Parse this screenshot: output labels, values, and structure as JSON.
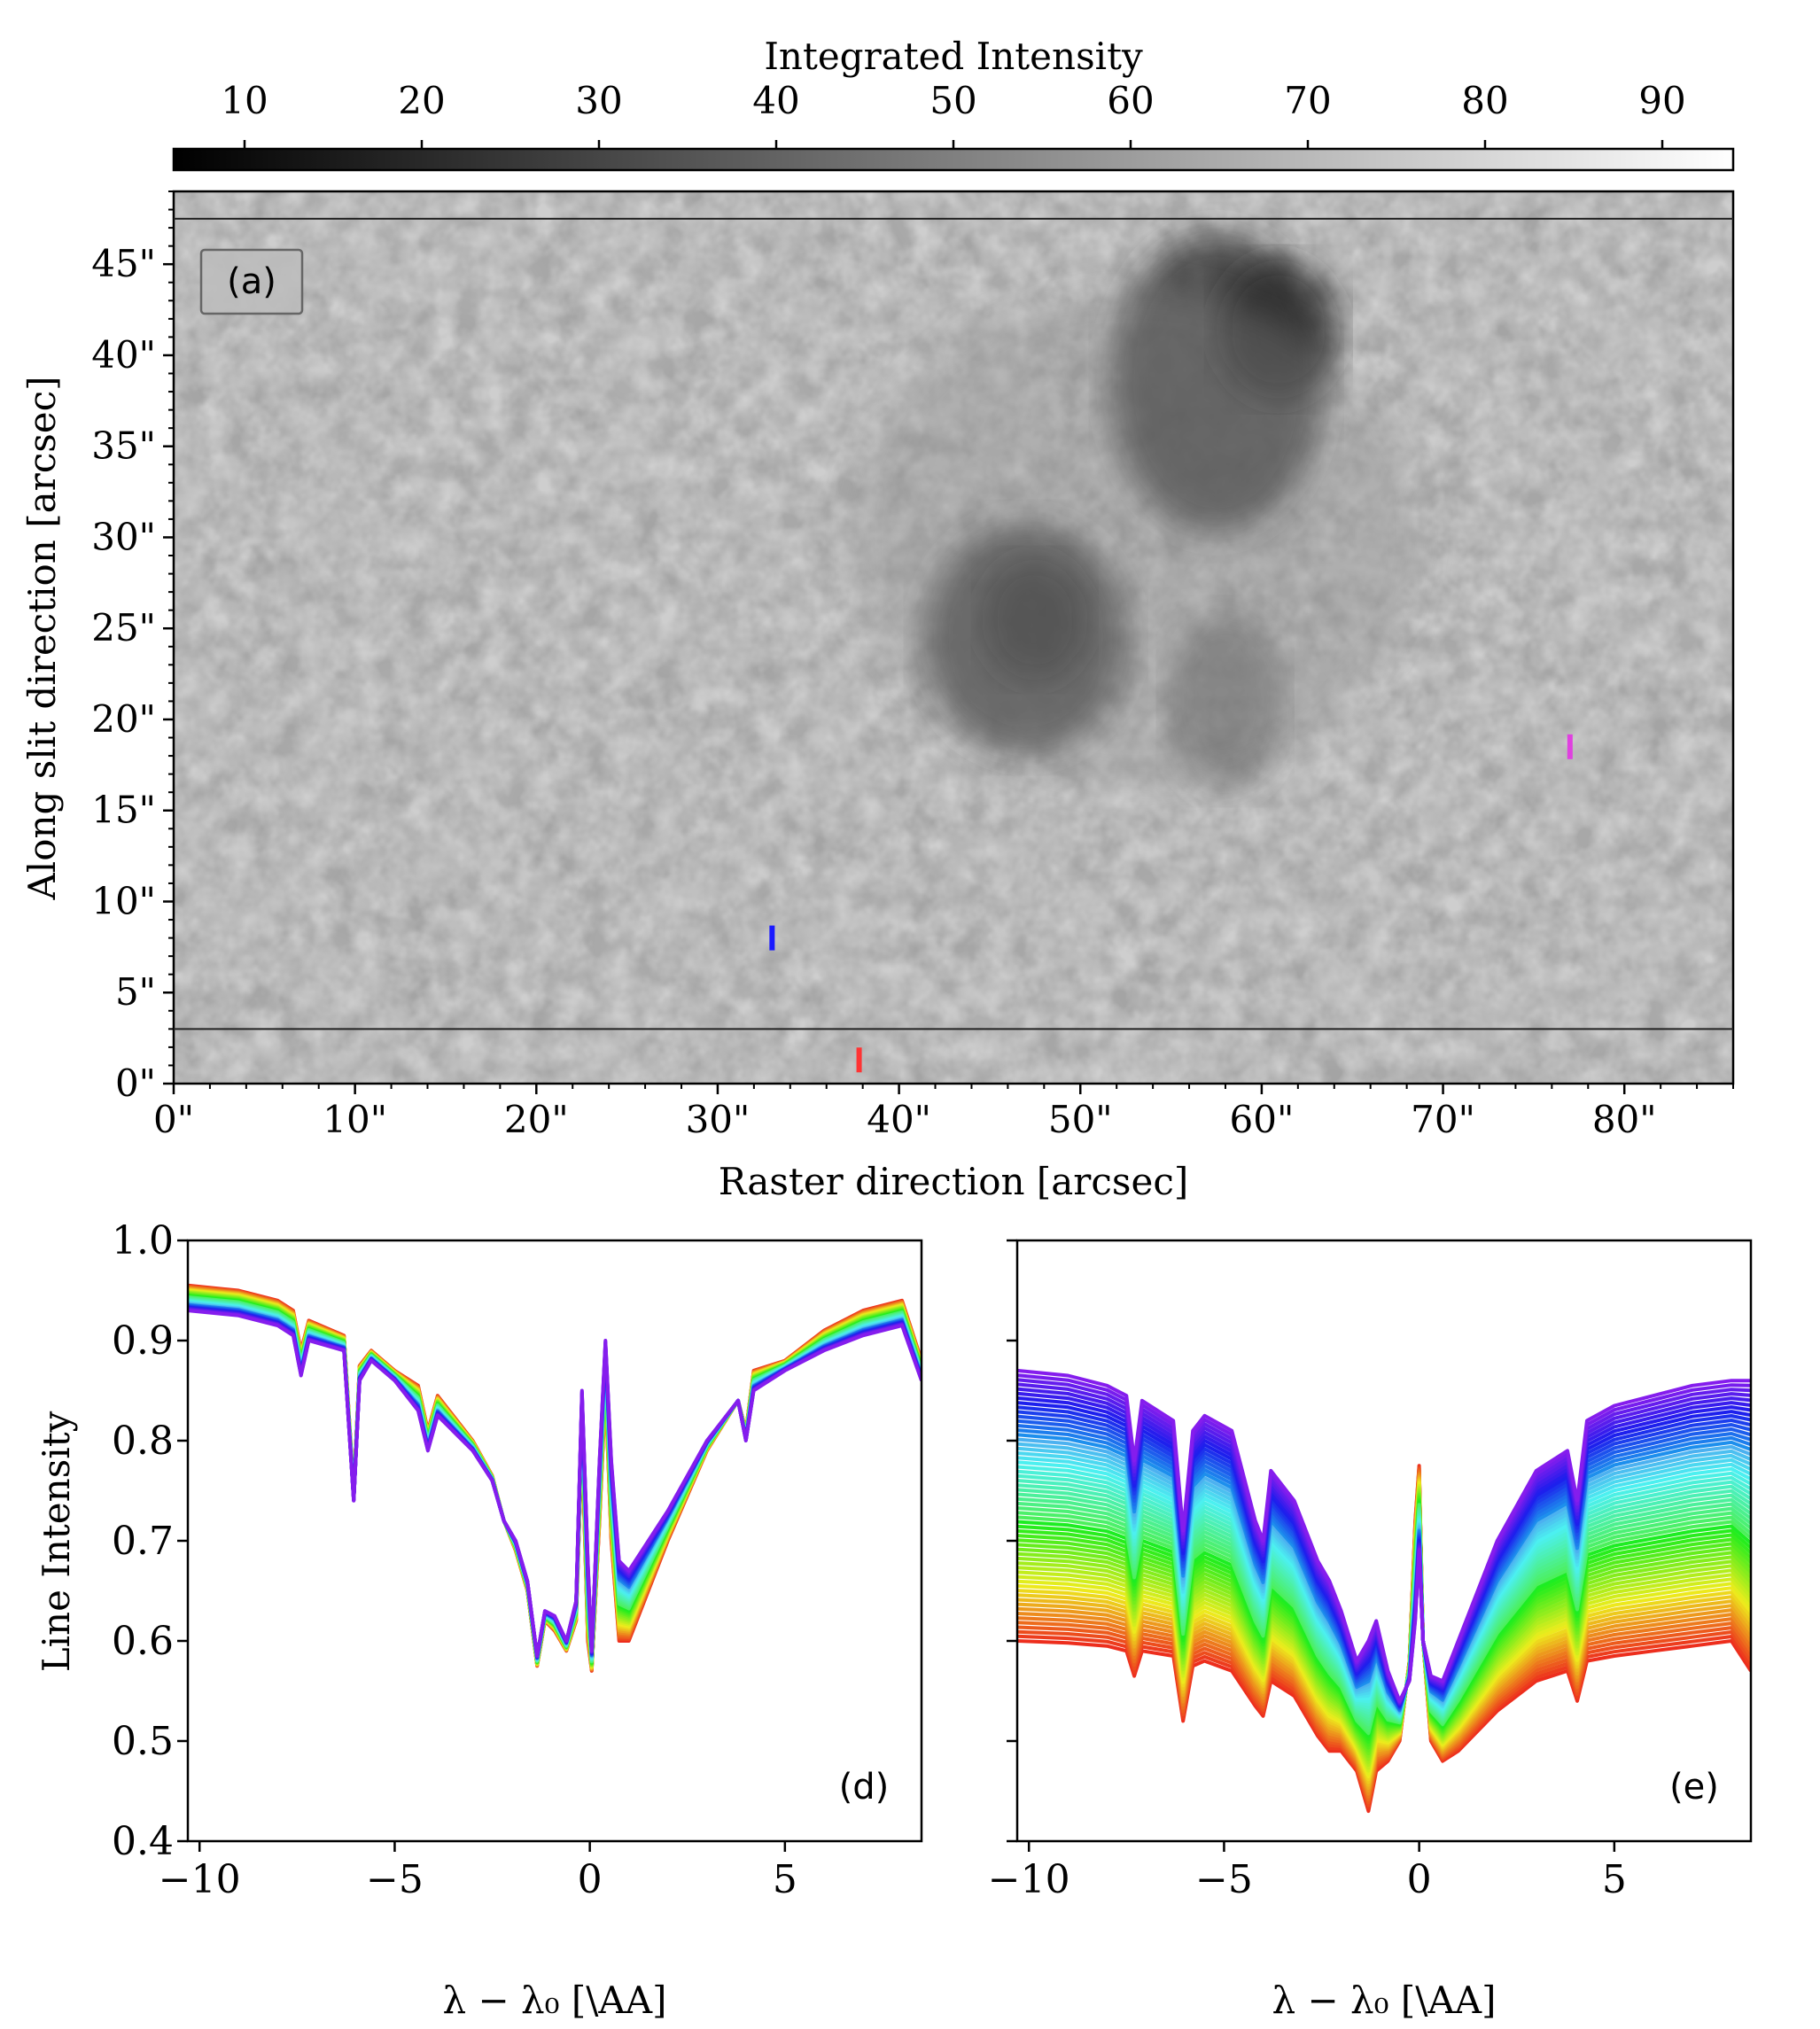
{
  "colorbar": {
    "label": "Integrated Intensity",
    "ticks": [
      10,
      20,
      30,
      40,
      50,
      60,
      70,
      80,
      90
    ],
    "range": [
      6,
      94
    ],
    "colormap": [
      "#000000",
      "#ffffff"
    ]
  },
  "chart_data": [
    {
      "panel": "(a)",
      "type": "heatmap",
      "xlabel": "Raster direction [arcsec]",
      "ylabel": "Along slit direction [arcsec]",
      "xlim": [
        0,
        86
      ],
      "ylim": [
        0,
        49
      ],
      "x_ticks": [
        "0\"",
        "10\"",
        "20\"",
        "30\"",
        "40\"",
        "50\"",
        "60\"",
        "70\"",
        "80\""
      ],
      "x_tick_values": [
        0,
        10,
        20,
        30,
        40,
        50,
        60,
        70,
        80
      ],
      "y_ticks": [
        "0\"",
        "5\"",
        "10\"",
        "15\"",
        "20\"",
        "25\"",
        "30\"",
        "35\"",
        "40\"",
        "45\""
      ],
      "y_tick_values": [
        0,
        5,
        10,
        15,
        20,
        25,
        30,
        35,
        40,
        45
      ],
      "horizontal_lines": [
        3,
        47.5
      ],
      "dark_regions": [
        {
          "name": "sunspot-upper",
          "x": 57.5,
          "y": 38.5
        },
        {
          "name": "sunspot-middle",
          "x": 47,
          "y": 24.5
        },
        {
          "name": "pore-lower",
          "x": 58,
          "y": 21
        }
      ],
      "markers": [
        {
          "color": "#1a1aff",
          "x": 33,
          "y": 8
        },
        {
          "color": "#ff3333",
          "x": 37.8,
          "y": 1.3
        },
        {
          "color": "#e040e0",
          "x": 77,
          "y": 18.5
        }
      ]
    },
    {
      "panel": "(d)",
      "type": "line",
      "xlabel": "λ − λ₀ [\\AA]",
      "ylabel": "Line Intensity",
      "xlim": [
        -10.3,
        8.5
      ],
      "ylim": [
        0.4,
        1.0
      ],
      "x_ticks": [
        "−10",
        "−5",
        "0",
        "5"
      ],
      "x_tick_values": [
        -10,
        -5,
        0,
        5
      ],
      "y_ticks": [
        "0.4",
        "0.5",
        "0.6",
        "0.7",
        "0.8",
        "0.9",
        "1.0"
      ],
      "y_tick_values": [
        0.4,
        0.5,
        0.6,
        0.7,
        0.8,
        0.9,
        1.0
      ],
      "series_count": 40,
      "color_range": [
        "#e3281a",
        "#7a1cff"
      ],
      "profile_top": {
        "x": [
          -10.3,
          -9,
          -8,
          -7.6,
          -7.4,
          -7.2,
          -6.3,
          -6.05,
          -5.9,
          -5.6,
          -5,
          -4.4,
          -4.15,
          -3.9,
          -3,
          -2.5,
          -2.2,
          -1.9,
          -1.6,
          -1.35,
          -1.15,
          -0.9,
          -0.6,
          -0.35,
          -0.2,
          -0.05,
          0.05,
          0.25,
          0.4,
          0.55,
          0.75,
          1,
          2,
          3,
          3.8,
          4,
          4.2,
          5,
          6,
          7,
          8,
          8.5
        ],
        "y": [
          0.93,
          0.925,
          0.915,
          0.905,
          0.865,
          0.9,
          0.89,
          0.74,
          0.86,
          0.88,
          0.86,
          0.83,
          0.79,
          0.825,
          0.79,
          0.76,
          0.72,
          0.7,
          0.66,
          0.585,
          0.63,
          0.625,
          0.6,
          0.64,
          0.85,
          0.68,
          0.59,
          0.78,
          0.9,
          0.78,
          0.68,
          0.67,
          0.73,
          0.8,
          0.84,
          0.8,
          0.85,
          0.87,
          0.89,
          0.905,
          0.915,
          0.86
        ]
      },
      "profile_bottom": {
        "x": [
          -10.3,
          -9,
          -8,
          -7.6,
          -7.4,
          -7.2,
          -6.3,
          -6.05,
          -5.9,
          -5.6,
          -5,
          -4.4,
          -4.15,
          -3.9,
          -3,
          -2.5,
          -2.2,
          -1.9,
          -1.6,
          -1.35,
          -1.15,
          -0.9,
          -0.6,
          -0.35,
          -0.2,
          -0.05,
          0.05,
          0.25,
          0.4,
          0.55,
          0.75,
          1,
          2,
          3,
          3.8,
          4,
          4.2,
          5,
          6,
          7,
          8,
          8.5
        ],
        "y": [
          0.955,
          0.95,
          0.94,
          0.93,
          0.89,
          0.92,
          0.905,
          0.75,
          0.875,
          0.89,
          0.87,
          0.855,
          0.81,
          0.845,
          0.8,
          0.765,
          0.72,
          0.69,
          0.65,
          0.575,
          0.62,
          0.61,
          0.59,
          0.62,
          0.8,
          0.6,
          0.57,
          0.72,
          0.85,
          0.7,
          0.6,
          0.6,
          0.7,
          0.79,
          0.84,
          0.81,
          0.87,
          0.88,
          0.91,
          0.93,
          0.94,
          0.88
        ]
      }
    },
    {
      "panel": "(e)",
      "type": "line",
      "xlabel": "λ − λ₀ [\\AA]",
      "ylabel": "",
      "xlim": [
        -10.3,
        8.5
      ],
      "ylim": [
        0.4,
        1.0
      ],
      "x_ticks": [
        "−10",
        "−5",
        "0",
        "5"
      ],
      "x_tick_values": [
        -10,
        -5,
        0,
        5
      ],
      "y_tick_values": [
        0.4,
        0.5,
        0.6,
        0.7,
        0.8,
        0.9,
        1.0
      ],
      "series_count": 60,
      "color_range": [
        "#e3281a",
        "#7a1cff"
      ],
      "profile_top": {
        "x": [
          -10.3,
          -9,
          -8,
          -7.5,
          -7.3,
          -7.1,
          -6.3,
          -6.05,
          -5.8,
          -5.5,
          -4.8,
          -4.2,
          -4.0,
          -3.8,
          -3.2,
          -2.6,
          -2.3,
          -2.0,
          -1.6,
          -1.3,
          -1.1,
          -0.8,
          -0.5,
          -0.25,
          -0.1,
          0.0,
          0.1,
          0.3,
          0.6,
          1.0,
          2,
          3,
          3.8,
          4.05,
          4.3,
          5,
          6,
          7,
          8,
          8.5
        ],
        "y": [
          0.87,
          0.865,
          0.855,
          0.845,
          0.78,
          0.84,
          0.82,
          0.71,
          0.81,
          0.825,
          0.81,
          0.72,
          0.7,
          0.77,
          0.74,
          0.68,
          0.66,
          0.63,
          0.58,
          0.6,
          0.62,
          0.57,
          0.54,
          0.56,
          0.62,
          0.69,
          0.6,
          0.565,
          0.56,
          0.6,
          0.7,
          0.77,
          0.79,
          0.74,
          0.82,
          0.835,
          0.845,
          0.855,
          0.86,
          0.86
        ]
      },
      "profile_bottom": {
        "x": [
          -10.3,
          -9,
          -8,
          -7.5,
          -7.3,
          -7.1,
          -6.3,
          -6.05,
          -5.8,
          -5.5,
          -4.8,
          -4.2,
          -4.0,
          -3.8,
          -3.2,
          -2.6,
          -2.3,
          -2.0,
          -1.6,
          -1.3,
          -1.1,
          -0.8,
          -0.5,
          -0.25,
          -0.1,
          0.0,
          0.1,
          0.3,
          0.6,
          1.0,
          2,
          3,
          3.8,
          4.05,
          4.3,
          5,
          6,
          7,
          8,
          8.5
        ],
        "y": [
          0.6,
          0.598,
          0.595,
          0.59,
          0.565,
          0.59,
          0.585,
          0.52,
          0.575,
          0.58,
          0.57,
          0.535,
          0.525,
          0.56,
          0.545,
          0.505,
          0.49,
          0.49,
          0.47,
          0.43,
          0.47,
          0.48,
          0.5,
          0.58,
          0.72,
          0.775,
          0.6,
          0.5,
          0.48,
          0.49,
          0.53,
          0.56,
          0.57,
          0.54,
          0.58,
          0.585,
          0.59,
          0.595,
          0.6,
          0.57
        ]
      }
    }
  ]
}
